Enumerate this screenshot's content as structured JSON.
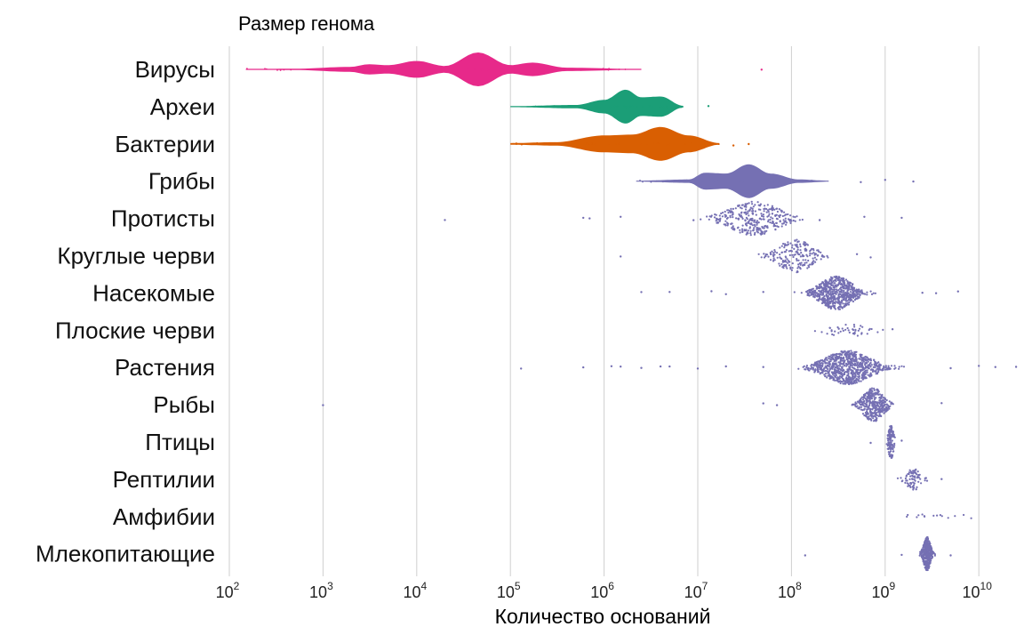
{
  "chart_data": {
    "type": "violin-swarm",
    "title": "Размер генома",
    "xlabel": "Количество оснований",
    "ylabel": "",
    "x_scale": "log10",
    "xlim": [
      100,
      30000000000
    ],
    "xticks": [
      {
        "value": 100,
        "base": "10",
        "exp": "2"
      },
      {
        "value": 1000,
        "base": "10",
        "exp": "3"
      },
      {
        "value": 10000,
        "base": "10",
        "exp": "4"
      },
      {
        "value": 100000,
        "base": "10",
        "exp": "5"
      },
      {
        "value": 1000000,
        "base": "10",
        "exp": "6"
      },
      {
        "value": 10000000,
        "base": "10",
        "exp": "7"
      },
      {
        "value": 100000000,
        "base": "10",
        "exp": "8"
      },
      {
        "value": 1000000000,
        "base": "10",
        "exp": "9"
      },
      {
        "value": 10000000000,
        "base": "10",
        "exp": "10"
      }
    ],
    "grid": "vertical",
    "legend": "none",
    "colors": {
      "pink": "#e7298a",
      "green": "#1b9e77",
      "orange": "#d95f02",
      "purple": "#7570b3",
      "grid": "#cfcfcf"
    },
    "categories": [
      {
        "label": "Вирусы",
        "style": "violin",
        "color": "#e7298a",
        "range": [
          150,
          2500000
        ],
        "median": 45000,
        "outliers": [
          48000000
        ],
        "density": [
          [
            150,
            0.02
          ],
          [
            500,
            0.04
          ],
          [
            2000,
            0.15
          ],
          [
            3000,
            0.3
          ],
          [
            5000,
            0.25
          ],
          [
            10000,
            0.5
          ],
          [
            20000,
            0.2
          ],
          [
            45000,
            1.0
          ],
          [
            100000,
            0.25
          ],
          [
            170000,
            0.4
          ],
          [
            400000,
            0.1
          ],
          [
            2500000,
            0.02
          ]
        ]
      },
      {
        "label": "Археи",
        "style": "violin",
        "color": "#1b9e77",
        "range": [
          100000,
          7000000
        ],
        "median": 1700000,
        "outliers": [
          13000000
        ],
        "density": [
          [
            100000,
            0.03
          ],
          [
            500000,
            0.1
          ],
          [
            1000000,
            0.4
          ],
          [
            1700000,
            1.0
          ],
          [
            2500000,
            0.55
          ],
          [
            4000000,
            0.6
          ],
          [
            7000000,
            0.05
          ]
        ]
      },
      {
        "label": "Бактерии",
        "style": "violin",
        "color": "#d95f02",
        "range": [
          100000,
          17000000
        ],
        "median": 4000000,
        "outliers": [
          24000000,
          35000000
        ],
        "density": [
          [
            100000,
            0.05
          ],
          [
            300000,
            0.1
          ],
          [
            1000000,
            0.5
          ],
          [
            2000000,
            0.55
          ],
          [
            4000000,
            1.0
          ],
          [
            8000000,
            0.5
          ],
          [
            17000000,
            0.05
          ]
        ]
      },
      {
        "label": "Грибы",
        "style": "violin",
        "color": "#7570b3",
        "range": [
          2200000,
          250000000
        ],
        "median": 35000000,
        "outliers": [
          550000000,
          1000000000,
          2000000000
        ],
        "density": [
          [
            2200000,
            0.03
          ],
          [
            8000000,
            0.1
          ],
          [
            12000000,
            0.5
          ],
          [
            20000000,
            0.45
          ],
          [
            35000000,
            1.0
          ],
          [
            60000000,
            0.45
          ],
          [
            120000000,
            0.1
          ],
          [
            250000000,
            0.03
          ]
        ]
      },
      {
        "label": "Протисты",
        "style": "swarm",
        "color": "#7570b3",
        "center": 40000000,
        "spread": 0.45,
        "count": 330,
        "outliers": [
          20000,
          600000,
          700000,
          1500000,
          9000000,
          200000000,
          600000000,
          1500000000
        ]
      },
      {
        "label": "Круглые черви",
        "style": "swarm",
        "color": "#7570b3",
        "center": 110000000,
        "spread": 0.3,
        "count": 200,
        "outliers": [
          1500000,
          500000000,
          700000000
        ]
      },
      {
        "label": "Насекомые",
        "style": "swarm",
        "color": "#7570b3",
        "center": 300000000,
        "spread": 0.28,
        "count": 620,
        "outliers": [
          2500000,
          5000000,
          14000000,
          20000000,
          50000000,
          2500000000,
          3500000000,
          6000000000
        ]
      },
      {
        "label": "Плоские черви",
        "style": "swarm",
        "color": "#7570b3",
        "center": 400000000,
        "spread": 0.4,
        "count": 45,
        "outliers": [
          1200000000
        ]
      },
      {
        "label": "Растения",
        "style": "swarm",
        "color": "#7570b3",
        "center": 400000000,
        "spread": 0.4,
        "count": 800,
        "outliers": [
          130000,
          600000,
          1200000,
          1500000,
          2500000,
          4000000,
          5000000,
          10000000,
          20000000,
          50000000,
          5000000000,
          10000000000,
          15000000000,
          25000000000
        ]
      },
      {
        "label": "Рыбы",
        "style": "swarm",
        "color": "#7570b3",
        "center": 750000000,
        "spread": 0.18,
        "count": 380,
        "outliers": [
          1000,
          50000000,
          70000000,
          4000000000
        ]
      },
      {
        "label": "Птицы",
        "style": "swarm",
        "color": "#7570b3",
        "center": 1150000000,
        "spread": 0.04,
        "count": 130,
        "outliers": [
          700000000,
          1500000000
        ]
      },
      {
        "label": "Рептилии",
        "style": "swarm",
        "color": "#7570b3",
        "center": 2000000000,
        "spread": 0.12,
        "count": 80,
        "outliers": [
          4000000000
        ]
      },
      {
        "label": "Амфибии",
        "style": "swarm",
        "color": "#7570b3",
        "center": 2500000000,
        "spread": 0.5,
        "count": 15,
        "outliers": []
      },
      {
        "label": "Млекопитающие",
        "style": "swarm",
        "color": "#7570b3",
        "center": 2800000000,
        "spread": 0.06,
        "count": 400,
        "outliers": [
          140000000,
          1500000000,
          5000000000
        ]
      }
    ]
  }
}
